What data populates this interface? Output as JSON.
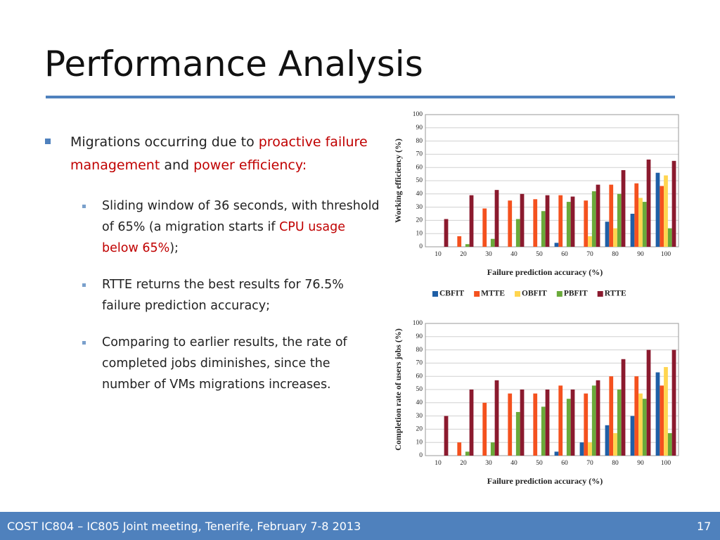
{
  "slide": {
    "title": "Performance Analysis",
    "accent_color": "#c00000",
    "bullets": [
      {
        "level": 1,
        "segments": [
          {
            "text": "Migrations occurring due to "
          },
          {
            "text": "proactive failure management",
            "accent": true
          },
          {
            "text": " and "
          },
          {
            "text": "power efficiency:",
            "accent": true
          }
        ]
      },
      {
        "level": 2,
        "segments": [
          {
            "text": "Sliding window of 36 seconds, with threshold of 65% (a migration starts if "
          },
          {
            "text": "CPU usage below 65%",
            "accent": true
          },
          {
            "text": ");"
          }
        ]
      },
      {
        "level": 2,
        "segments": [
          {
            "text": "RTTE returns the best results for 76.5% failure prediction accuracy;"
          }
        ]
      },
      {
        "level": 2,
        "segments": [
          {
            "text": "Comparing to earlier results, the rate of completed jobs diminishes, since the number of VMs migrations increases."
          }
        ]
      }
    ],
    "footer": "COST IC804 – IC805 Joint meeting, Tenerife, February 7-8 2013",
    "page_number": "17"
  },
  "chart_data": [
    {
      "type": "bar",
      "x_label": "Failure prediction accuracy (%)",
      "y_label": "Working efficiency (%)",
      "categories": [
        "10",
        "20",
        "30",
        "40",
        "50",
        "60",
        "70",
        "80",
        "90",
        "100"
      ],
      "ylim": [
        0,
        100
      ],
      "yticks": [
        0,
        10,
        20,
        30,
        40,
        50,
        60,
        70,
        80,
        90,
        100
      ],
      "grid": true,
      "legend": "bottom",
      "series": [
        {
          "name": "CBFIT",
          "color": "#1f5fa6",
          "values": [
            0,
            0,
            0,
            0,
            0,
            3,
            0,
            19,
            25,
            56
          ]
        },
        {
          "name": "MTTE",
          "color": "#f4511e",
          "values": [
            0,
            8,
            29,
            35,
            36,
            39,
            35,
            47,
            48,
            46
          ]
        },
        {
          "name": "OBFIT",
          "color": "#ffd54f",
          "values": [
            0,
            0,
            0,
            0,
            0,
            0,
            8,
            14,
            37,
            54
          ]
        },
        {
          "name": "PBFIT",
          "color": "#6aaa3a",
          "values": [
            0,
            2,
            6,
            21,
            27,
            34,
            42,
            40,
            34,
            14
          ]
        },
        {
          "name": "RTTE",
          "color": "#8b1a2e",
          "values": [
            21,
            39,
            43,
            40,
            39,
            38,
            47,
            58,
            66,
            65
          ]
        }
      ]
    },
    {
      "type": "bar",
      "x_label": "Failure prediction accuracy (%)",
      "y_label": "Completion rate of users jobs (%)",
      "categories": [
        "10",
        "20",
        "30",
        "40",
        "50",
        "60",
        "70",
        "80",
        "90",
        "100"
      ],
      "ylim": [
        0,
        100
      ],
      "yticks": [
        0,
        10,
        20,
        30,
        40,
        50,
        60,
        70,
        80,
        90,
        100
      ],
      "grid": true,
      "legend": "bottom",
      "series": [
        {
          "name": "CBFIT",
          "color": "#1f5fa6",
          "values": [
            0,
            0,
            0,
            0,
            0,
            3,
            10,
            23,
            30,
            63
          ]
        },
        {
          "name": "MTTE",
          "color": "#f4511e",
          "values": [
            0,
            10,
            40,
            47,
            47,
            53,
            47,
            60,
            60,
            53
          ]
        },
        {
          "name": "OBFIT",
          "color": "#ffd54f",
          "values": [
            0,
            0,
            0,
            0,
            0,
            0,
            10,
            17,
            47,
            67
          ]
        },
        {
          "name": "PBFIT",
          "color": "#6aaa3a",
          "values": [
            0,
            3,
            10,
            33,
            37,
            43,
            53,
            50,
            43,
            17
          ]
        },
        {
          "name": "RTTE",
          "color": "#8b1a2e",
          "values": [
            30,
            50,
            57,
            50,
            50,
            50,
            57,
            73,
            80,
            80
          ]
        }
      ]
    }
  ]
}
